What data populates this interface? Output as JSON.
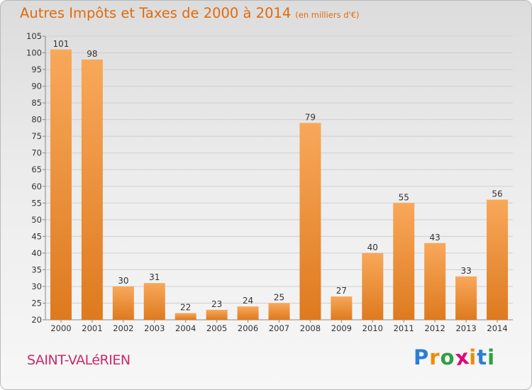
{
  "title": "Autres Impôts et Taxes de 2000 à 2014",
  "subtitle": "(en milliers d'€)",
  "town": "SAINT-VALéRIEN",
  "brand": {
    "text": "Proxiti",
    "letters": [
      "P",
      "r",
      "o",
      "x",
      "i",
      "t",
      "i"
    ],
    "colors": [
      "#2a7fd4",
      "#f08c00",
      "#2ea043",
      "#e0007a",
      "#f08c00",
      "#2a7fd4",
      "#2ea043"
    ]
  },
  "colors": {
    "title": "#e06b0c",
    "town": "#cc2a6b",
    "bar_light": "#f8a85a",
    "bar_dark": "#de7a1f"
  },
  "chart_data": {
    "type": "bar",
    "title": "Autres Impôts et Taxes de 2000 à 2014",
    "subtitle": "(en milliers d'€)",
    "categories": [
      "2000",
      "2001",
      "2002",
      "2003",
      "2004",
      "2005",
      "2006",
      "2007",
      "2008",
      "2009",
      "2010",
      "2011",
      "2012",
      "2013",
      "2014"
    ],
    "values": [
      101,
      98,
      30,
      31,
      22,
      23,
      24,
      25,
      79,
      27,
      40,
      55,
      43,
      33,
      56
    ],
    "ylim": [
      20,
      105
    ],
    "yticks": [
      20,
      25,
      30,
      35,
      40,
      45,
      50,
      55,
      60,
      65,
      70,
      75,
      80,
      85,
      90,
      95,
      100,
      105
    ],
    "grid": true,
    "data_labels": true
  }
}
